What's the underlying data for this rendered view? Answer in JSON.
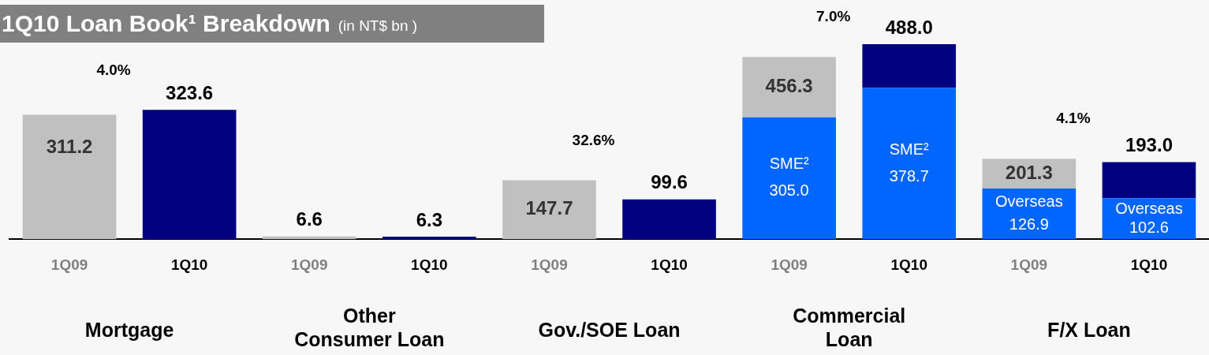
{
  "chart_data": {
    "type": "bar",
    "title": "1Q10 Loan Book¹ Breakdown",
    "subtitle": "(in NT$ bn )",
    "categories": [
      "1Q09",
      "1Q10",
      "1Q09",
      "1Q10",
      "1Q09",
      "1Q10",
      "1Q09",
      "1Q10",
      "1Q09",
      "1Q10"
    ],
    "stacked": true,
    "series": [
      {
        "color": "#0066ff",
        "values": [
          null,
          null,
          null,
          null,
          null,
          null,
          305.0,
          378.7,
          126.9,
          102.6
        ],
        "value_labels": [
          null,
          null,
          null,
          null,
          null,
          null,
          "SME² 305.0",
          "SME² 378.7",
          "Overseas 126.9",
          "Overseas 102.6"
        ]
      },
      {
        "colors": [
          "#c0c0c0",
          "#000080",
          "#c0c0c0",
          "#000080",
          "#c0c0c0",
          "#000080",
          "#c0c0c0",
          "#000080",
          "#c0c0c0",
          "#000080"
        ],
        "values": [
          311.2,
          323.6,
          6.6,
          6.3,
          147.7,
          99.6,
          151.3,
          109.3,
          74.4,
          90.4
        ]
      }
    ],
    "totals": [
      "311.2",
      "323.6",
      "6.6",
      "6.3",
      "147.7",
      "99.6",
      "456.3",
      "488.0",
      "201.3",
      "193.0"
    ],
    "annotations": [
      "Mortgage",
      "Other Consumer Loan",
      "Gov./SOE Loan",
      "Commercial Loan",
      "F/X Loan",
      "4.0%",
      "32.6%",
      "7.0%",
      "4.1%"
    ]
  }
}
